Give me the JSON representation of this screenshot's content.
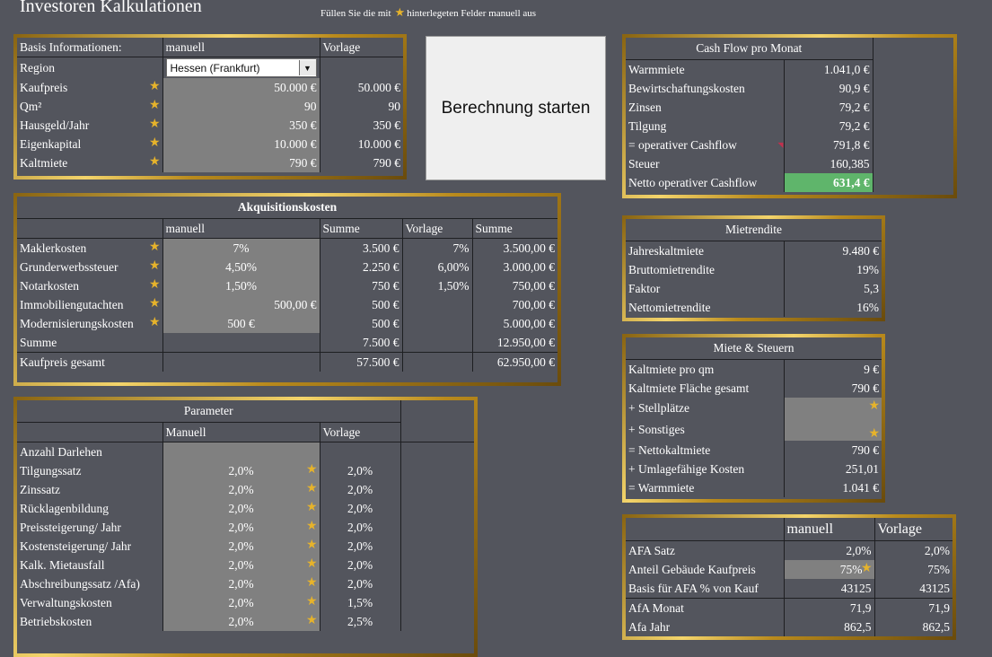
{
  "page": {
    "title": "Investoren Kalkulationen",
    "hint_pre": "Füllen Sie die mit",
    "hint_post": "hinterlegeten Felder manuell aus"
  },
  "basis": {
    "col1": "Basis Informationen:",
    "col2": "manuell",
    "col3": "Vorlage",
    "region_label": "Region",
    "region_value": "Hessen (Frankfurt)",
    "rows": [
      {
        "label": "Kaufpreis",
        "manuell": "50.000 €",
        "vorlage": "50.000 €"
      },
      {
        "label": "Qm²",
        "manuell": "90",
        "vorlage": "90"
      },
      {
        "label": "Hausgeld/Jahr",
        "manuell": "350 €",
        "vorlage": "350 €"
      },
      {
        "label": "Eigenkapital",
        "manuell": "10.000 €",
        "vorlage": "10.000 €"
      },
      {
        "label": "Kaltmiete",
        "manuell": "790 €",
        "vorlage": "790 €"
      }
    ]
  },
  "button": {
    "label": "Berechnung starten"
  },
  "cashflow": {
    "title": "Cash Flow pro Monat",
    "rows": [
      {
        "label": "Warmmiete",
        "value": "1.041,0 €"
      },
      {
        "label": "Bewirtschaftungskosten",
        "value": "90,9 €"
      },
      {
        "label": "Zinsen",
        "value": "79,2 €"
      },
      {
        "label": "Tilgung",
        "value": "79,2 €"
      },
      {
        "label": " = operativer Cashflow",
        "value": "791,8 €"
      },
      {
        "label": "Steuer",
        "value": "160,385"
      },
      {
        "label": "Netto operativer Cashflow",
        "value": "631,4 €"
      }
    ]
  },
  "akquisition": {
    "title": "Akquisitionskosten",
    "headers": {
      "manuell": "manuell",
      "summe": "Summe",
      "vorlage": "Vorlage",
      "summe2": "Summe"
    },
    "rows": [
      {
        "label": "Maklerkosten",
        "manuell": "7%",
        "summe": "3.500 €",
        "vorlage": "7%",
        "summe2": "3.500,00 €"
      },
      {
        "label": "Grunderwerbssteuer",
        "manuell": "4,50%",
        "summe": "2.250 €",
        "vorlage": "6,00%",
        "summe2": "3.000,00 €"
      },
      {
        "label": "Notarkosten",
        "manuell": "1,50%",
        "summe": "750 €",
        "vorlage": "1,50%",
        "summe2": "750,00 €"
      },
      {
        "label": "Immobiliengutachten",
        "manuell": "500,00 €",
        "summe": "500 €",
        "vorlage": "",
        "summe2": "700,00 €"
      },
      {
        "label": "Modernisierungskosten",
        "manuell": "500 €",
        "summe": "500 €",
        "vorlage": "",
        "summe2": "5.000,00 €"
      }
    ],
    "summe_label": "Summe",
    "summe_val": "7.500 €",
    "summe_val2": "12.950,00 €",
    "gesamt_label": "Kaufpreis gesamt",
    "gesamt_val": "57.500 €",
    "gesamt_val2": "62.950,00 €"
  },
  "mietrendite": {
    "title": "Mietrendite",
    "rows": [
      {
        "label": "Jahreskaltmiete",
        "value": "9.480 €"
      },
      {
        "label": "Bruttomietrendite",
        "value": "19%"
      },
      {
        "label": "Faktor",
        "value": "5,3"
      },
      {
        "label": "Nettomietrendite",
        "value": "16%"
      }
    ]
  },
  "miete_steuern": {
    "title": "Miete & Steuern",
    "rows": [
      {
        "label": "Kaltmiete pro qm",
        "value": "9 €"
      },
      {
        "label": "Kaltmiete Fläche gesamt",
        "value": "790 €"
      },
      {
        "label": " + Stellplätze",
        "value": ""
      },
      {
        "label": " + Sonstiges",
        "value": ""
      },
      {
        "label": " = Nettokaltmiete",
        "value": "790 €"
      },
      {
        "label": " + Umlagefähige Kosten",
        "value": "251,01"
      },
      {
        "label": " = Warmmiete",
        "value": "1.041 €"
      }
    ]
  },
  "parameter": {
    "title": "Parameter",
    "h_manuell": "Manuell",
    "h_vorlage": "Vorlage",
    "anzahl_label": "Anzahl Darlehen",
    "rows": [
      {
        "label": "Tilgungssatz",
        "manuell": "2,0%",
        "vorlage": "2,0%"
      },
      {
        "label": "Zinssatz",
        "manuell": "2,0%",
        "vorlage": "2,0%"
      },
      {
        "label": "Rücklagenbildung",
        "manuell": "2,0%",
        "vorlage": "2,0%"
      },
      {
        "label": "Preissteigerung/ Jahr",
        "manuell": "2,0%",
        "vorlage": "2,0%"
      },
      {
        "label": "Kostensteigerung/ Jahr",
        "manuell": "2,0%",
        "vorlage": "2,0%"
      },
      {
        "label": "Kalk. Mietausfall",
        "manuell": "2,0%",
        "vorlage": "2,0%"
      },
      {
        "label": "Abschreibungssatz /Afa)",
        "manuell": "2,0%",
        "vorlage": "2,0%"
      },
      {
        "label": "Verwaltungskosten",
        "manuell": "2,0%",
        "vorlage": "1,5%"
      },
      {
        "label": "Betriebskosten",
        "manuell": "2,0%",
        "vorlage": "2,5%"
      }
    ]
  },
  "afa": {
    "h_manuell": "manuell",
    "h_vorlage": "Vorlage",
    "rows": [
      {
        "label": "AFA Satz",
        "manuell": "2,0%",
        "vorlage": "2,0%"
      },
      {
        "label": "Anteil Gebäude Kaufpreis",
        "manuell": "75%",
        "vorlage": "75%"
      },
      {
        "label": "Basis für  AFA % von Kauf",
        "manuell": "43125",
        "vorlage": "43125"
      },
      {
        "label": "AfA Monat",
        "manuell": "71,9",
        "vorlage": "71,9"
      },
      {
        "label": "Afa Jahr",
        "manuell": "862,5",
        "vorlage": "862,5"
      }
    ]
  },
  "icons": {
    "star": "star-icon",
    "dropdown": "chevron-down-icon"
  },
  "colors": {
    "background": "#53555d",
    "gold": "#c79a1e",
    "input_grey": "#808080",
    "highlight_green": "#5fb56b"
  }
}
